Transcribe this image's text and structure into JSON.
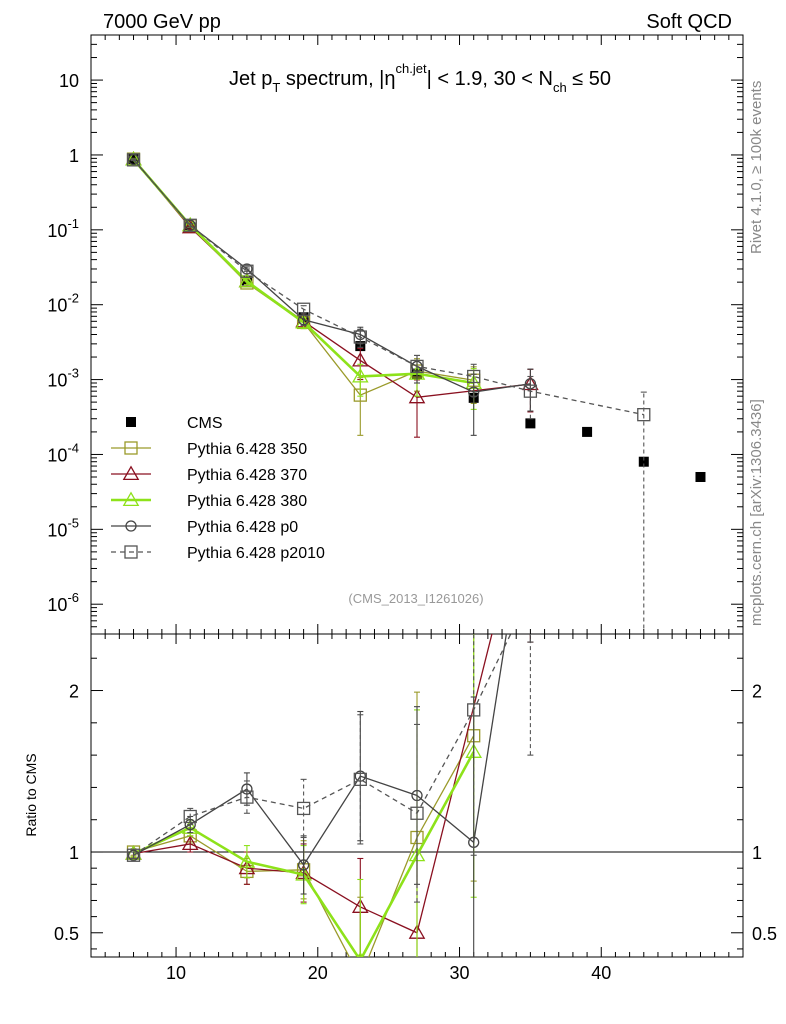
{
  "header": {
    "left": "7000 GeV pp",
    "right": "Soft QCD"
  },
  "side_labels": {
    "top": "Rivet 4.1.0, ≥ 100k events",
    "bottom": "mcplots.cern.ch [arXiv:1306.3436]"
  },
  "chart_data": [
    {
      "type": "scatter",
      "panel": "main",
      "title": "Jet p_T spectrum, |η^{ch.jet}| < 1.9, 30 < N_ch ≤ 50",
      "title_parts": {
        "jet": "Jet p",
        "sub_t": "T",
        "spectrum": " spectrum, |η",
        "sup_chjet": "ch.jet",
        "range": "| < 1.9, 30 < N",
        "sub_ch": "ch",
        "tail": " ≤ 50"
      },
      "watermark": "(CMS_2013_I1261026)",
      "yscale": "log",
      "ylim": [
        4e-07,
        40
      ],
      "xlim": [
        4,
        50
      ],
      "ytick_labels": [
        "10",
        "1",
        "10^-1",
        "10^-2",
        "10^-3",
        "10^-4",
        "10^-5",
        "10^-6"
      ],
      "legend": [
        "CMS",
        "Pythia 6.428 350",
        "Pythia 6.428 370",
        "Pythia 6.428 380",
        "Pythia 6.428 p0",
        "Pythia 6.428 p2010"
      ],
      "legend_placement": "bottom-left",
      "series": [
        {
          "name": "CMS",
          "color": "#000000",
          "marker": "filled-square",
          "x": [
            7,
            11,
            15,
            19,
            23,
            27,
            31,
            35,
            39,
            43,
            47
          ],
          "y": [
            0.88,
            0.108,
            0.021,
            0.0068,
            0.0028,
            0.0012,
            0.00057,
            0.00026,
            0.0002,
            8e-05,
            5e-05
          ]
        },
        {
          "name": "Pythia 6.428 350",
          "color": "#9a9a2a",
          "marker": "open-square",
          "x": [
            7,
            11,
            15,
            19,
            23,
            27,
            31
          ],
          "y": [
            0.88,
            0.113,
            0.0195,
            0.0058,
            0.00062,
            0.0013,
            0.00098
          ],
          "err": [
            0.02,
            0.006,
            0.002,
            0.001,
            0.00044,
            0.0006,
            0.0005
          ]
        },
        {
          "name": "Pythia 6.428 370",
          "color": "#8a1020",
          "marker": "open-triangle",
          "x": [
            7,
            11,
            15,
            19,
            23,
            27,
            35
          ],
          "y": [
            0.87,
            0.108,
            0.0205,
            0.006,
            0.0018,
            0.00058,
            0.00087
          ],
          "err": [
            0.02,
            0.006,
            0.002,
            0.001,
            0.0008,
            0.00041,
            0.0005
          ]
        },
        {
          "name": "Pythia 6.428 380",
          "color": "#8ee21a",
          "marker": "open-triangle",
          "x": [
            7,
            11,
            15,
            19,
            23,
            27,
            31
          ],
          "y": [
            0.87,
            0.115,
            0.0205,
            0.0058,
            0.0011,
            0.0012,
            0.0009
          ],
          "err": [
            0.02,
            0.006,
            0.002,
            0.001,
            0.0005,
            0.0006,
            0.0005
          ]
        },
        {
          "name": "Pythia 6.428 p0",
          "color": "#444444",
          "marker": "open-circle",
          "x": [
            7,
            11,
            15,
            19,
            23,
            27,
            31,
            35
          ],
          "y": [
            0.87,
            0.115,
            0.03,
            0.0063,
            0.004,
            0.0015,
            0.00068,
            0.00088
          ],
          "err": [
            0.02,
            0.006,
            0.002,
            0.001,
            0.001,
            0.0006,
            0.0005,
            0.0005
          ]
        },
        {
          "name": "Pythia 6.428 p2010",
          "color": "#555555",
          "marker": "open-square",
          "dashed": true,
          "x": [
            7,
            11,
            15,
            19,
            23,
            27,
            31,
            35,
            43
          ],
          "y": [
            0.86,
            0.115,
            0.028,
            0.0087,
            0.0037,
            0.0015,
            0.0011,
            0.0007,
            0.00034
          ],
          "err": [
            0.02,
            0.006,
            0.002,
            0.001,
            0.001,
            0.0006,
            0.0005,
            0.0004,
            0.00034
          ]
        }
      ]
    },
    {
      "type": "line",
      "panel": "ratio",
      "ylabel": "Ratio to CMS",
      "ylim": [
        0.35,
        2.35
      ],
      "xlim": [
        4,
        50
      ],
      "x_ticks": [
        10,
        20,
        30,
        40
      ],
      "x_tick_labels": [
        "10",
        "20",
        "30",
        "40"
      ],
      "y_ticks": [
        0.5,
        1,
        2
      ],
      "y_tick_labels": [
        "0.5",
        "1",
        "2"
      ],
      "reference_line": 1,
      "series": [
        {
          "name": "Pythia 6.428 350",
          "color": "#9a9a2a",
          "marker": "open-square",
          "x": [
            7,
            11,
            15,
            19,
            23,
            27,
            31
          ],
          "y": [
            1.0,
            1.1,
            0.88,
            0.89,
            0.22,
            1.09,
            1.72
          ],
          "err": [
            0.02,
            0.05,
            0.08,
            0.18,
            0.5,
            0.9,
            0.9
          ]
        },
        {
          "name": "Pythia 6.428 370",
          "color": "#8a1020",
          "marker": "open-triangle",
          "x": [
            7,
            11,
            15,
            19,
            23,
            27,
            35
          ],
          "y": [
            0.99,
            1.05,
            0.9,
            0.87,
            0.66,
            0.5,
            3.3
          ],
          "err": [
            0.02,
            0.05,
            0.1,
            0.18,
            0.3,
            0.5,
            1.0
          ]
        },
        {
          "name": "Pythia 6.428 380",
          "color": "#8ee21a",
          "marker": "open-triangle",
          "x": [
            7,
            11,
            15,
            19,
            23,
            27,
            31
          ],
          "y": [
            0.99,
            1.15,
            0.94,
            0.86,
            0.33,
            0.98,
            1.62
          ],
          "err": [
            0.02,
            0.05,
            0.1,
            0.18,
            0.5,
            0.9,
            0.9
          ]
        },
        {
          "name": "Pythia 6.428 p0",
          "color": "#444444",
          "marker": "open-circle",
          "x": [
            7,
            11,
            15,
            19,
            23,
            27,
            31,
            35
          ],
          "y": [
            0.98,
            1.17,
            1.39,
            0.92,
            1.47,
            1.35,
            1.06,
            3.3
          ],
          "err": [
            0.02,
            0.05,
            0.1,
            0.18,
            0.4,
            0.55,
            0.9,
            1.0
          ]
        },
        {
          "name": "Pythia 6.428 p2010",
          "color": "#555555",
          "marker": "open-square",
          "dashed": true,
          "x": [
            7,
            11,
            15,
            19,
            23,
            27,
            31,
            35
          ],
          "y": [
            0.98,
            1.22,
            1.34,
            1.27,
            1.45,
            1.24,
            1.88,
            2.6
          ],
          "err": [
            0.02,
            0.05,
            0.1,
            0.18,
            0.4,
            0.55,
            0.9,
            1.0
          ]
        }
      ]
    }
  ]
}
